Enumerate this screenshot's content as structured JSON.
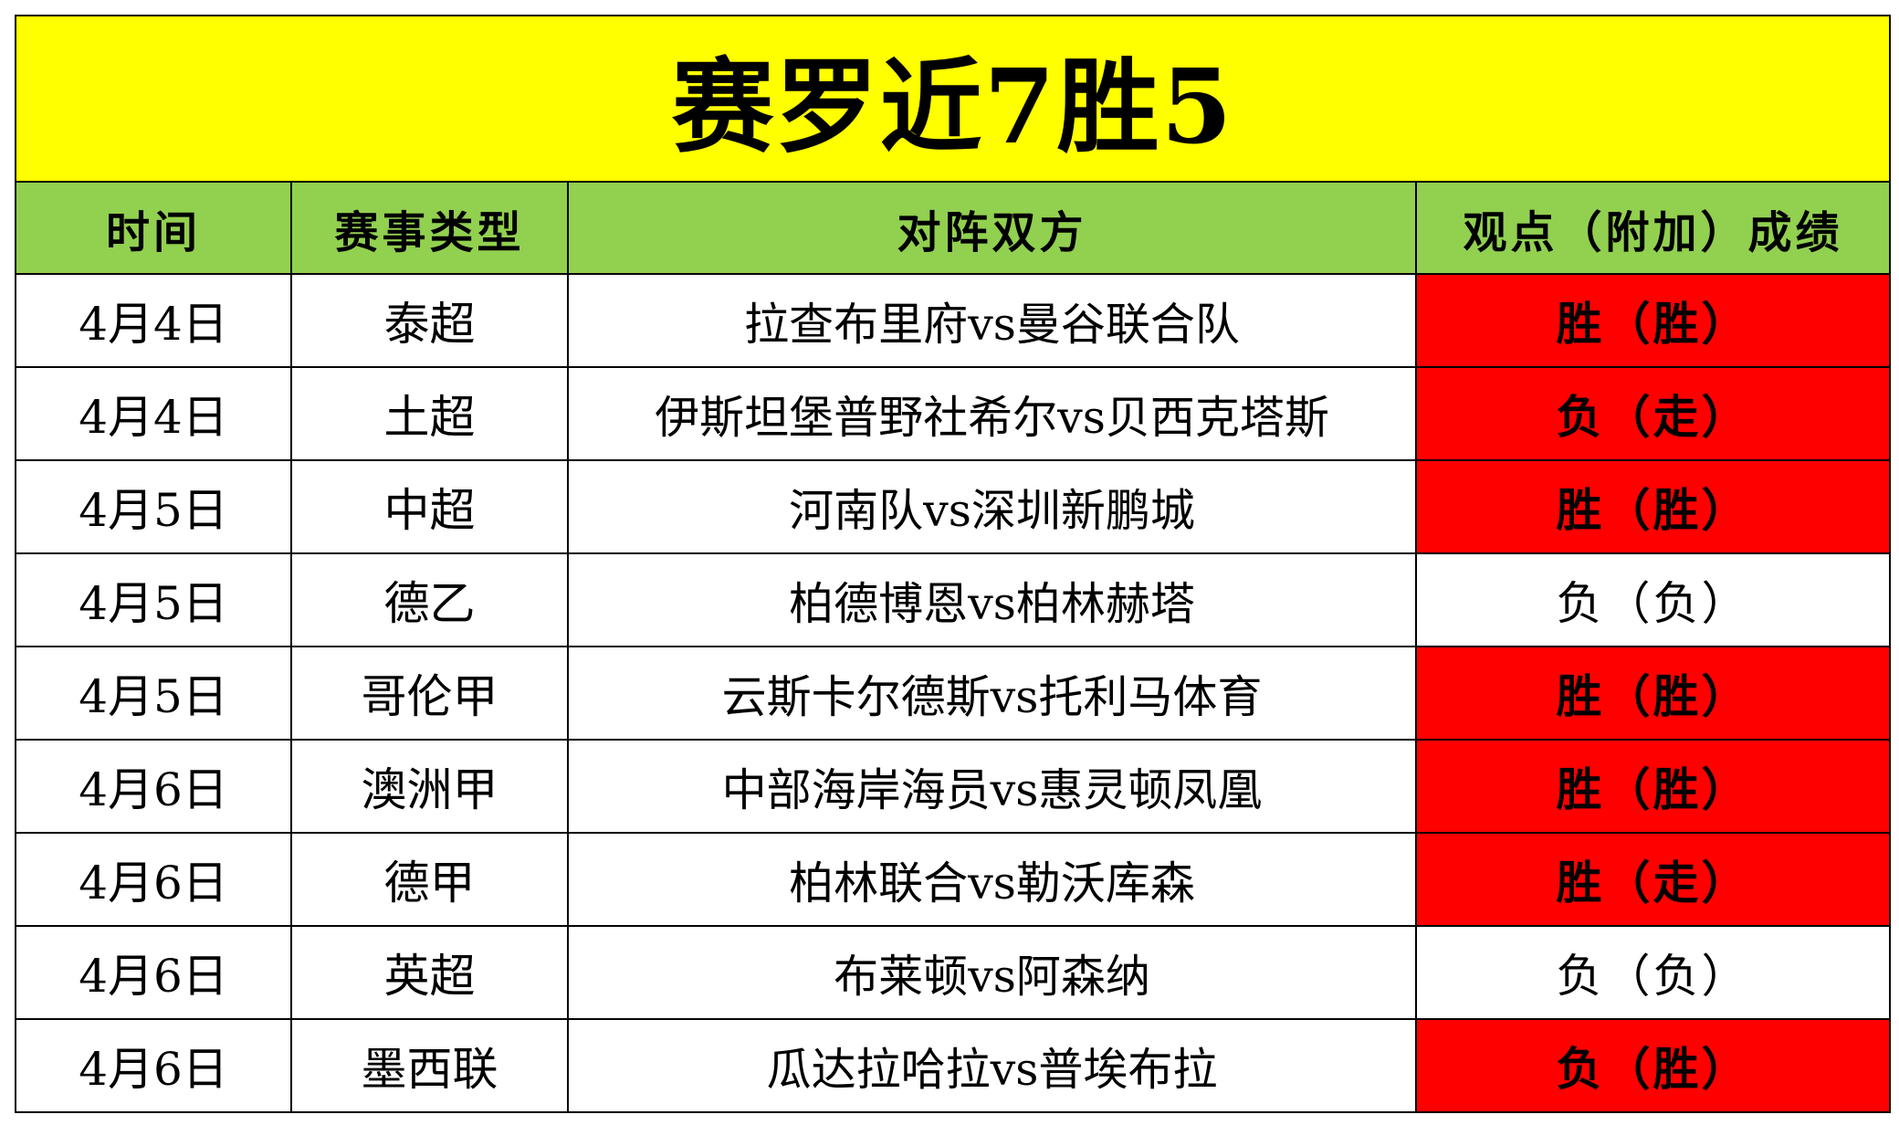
{
  "title": "赛罗近7胜5",
  "headers": {
    "time": "时间",
    "type": "赛事类型",
    "teams": "对阵双方",
    "result": "观点（附加）成绩"
  },
  "colors": {
    "title_bg": "#ffff00",
    "header_bg": "#92d050",
    "hit_bg": "#ff0000",
    "miss_bg": "#ffffff"
  },
  "rows": [
    {
      "time": "4月4日",
      "type": "泰超",
      "teams": "拉查布里府vs曼谷联合队",
      "result": "胜（胜）",
      "highlight": true
    },
    {
      "time": "4月4日",
      "type": "土超",
      "teams": "伊斯坦堡普野社希尔vs贝西克塔斯",
      "result": "负（走）",
      "highlight": true
    },
    {
      "time": "4月5日",
      "type": "中超",
      "teams": "河南队vs深圳新鹏城",
      "result": "胜（胜）",
      "highlight": true
    },
    {
      "time": "4月5日",
      "type": "德乙",
      "teams": "柏德博恩vs柏林赫塔",
      "result": "负（负）",
      "highlight": false
    },
    {
      "time": "4月5日",
      "type": "哥伦甲",
      "teams": "云斯卡尔德斯vs托利马体育",
      "result": "胜（胜）",
      "highlight": true
    },
    {
      "time": "4月6日",
      "type": "澳洲甲",
      "teams": "中部海岸海员vs惠灵顿凤凰",
      "result": "胜（胜）",
      "highlight": true
    },
    {
      "time": "4月6日",
      "type": "德甲",
      "teams": "柏林联合vs勒沃库森",
      "result": "胜（走）",
      "highlight": true
    },
    {
      "time": "4月6日",
      "type": "英超",
      "teams": "布莱顿vs阿森纳",
      "result": "负（负）",
      "highlight": false
    },
    {
      "time": "4月6日",
      "type": "墨西联",
      "teams": "瓜达拉哈拉vs普埃布拉",
      "result": "负（胜）",
      "highlight": true
    }
  ]
}
